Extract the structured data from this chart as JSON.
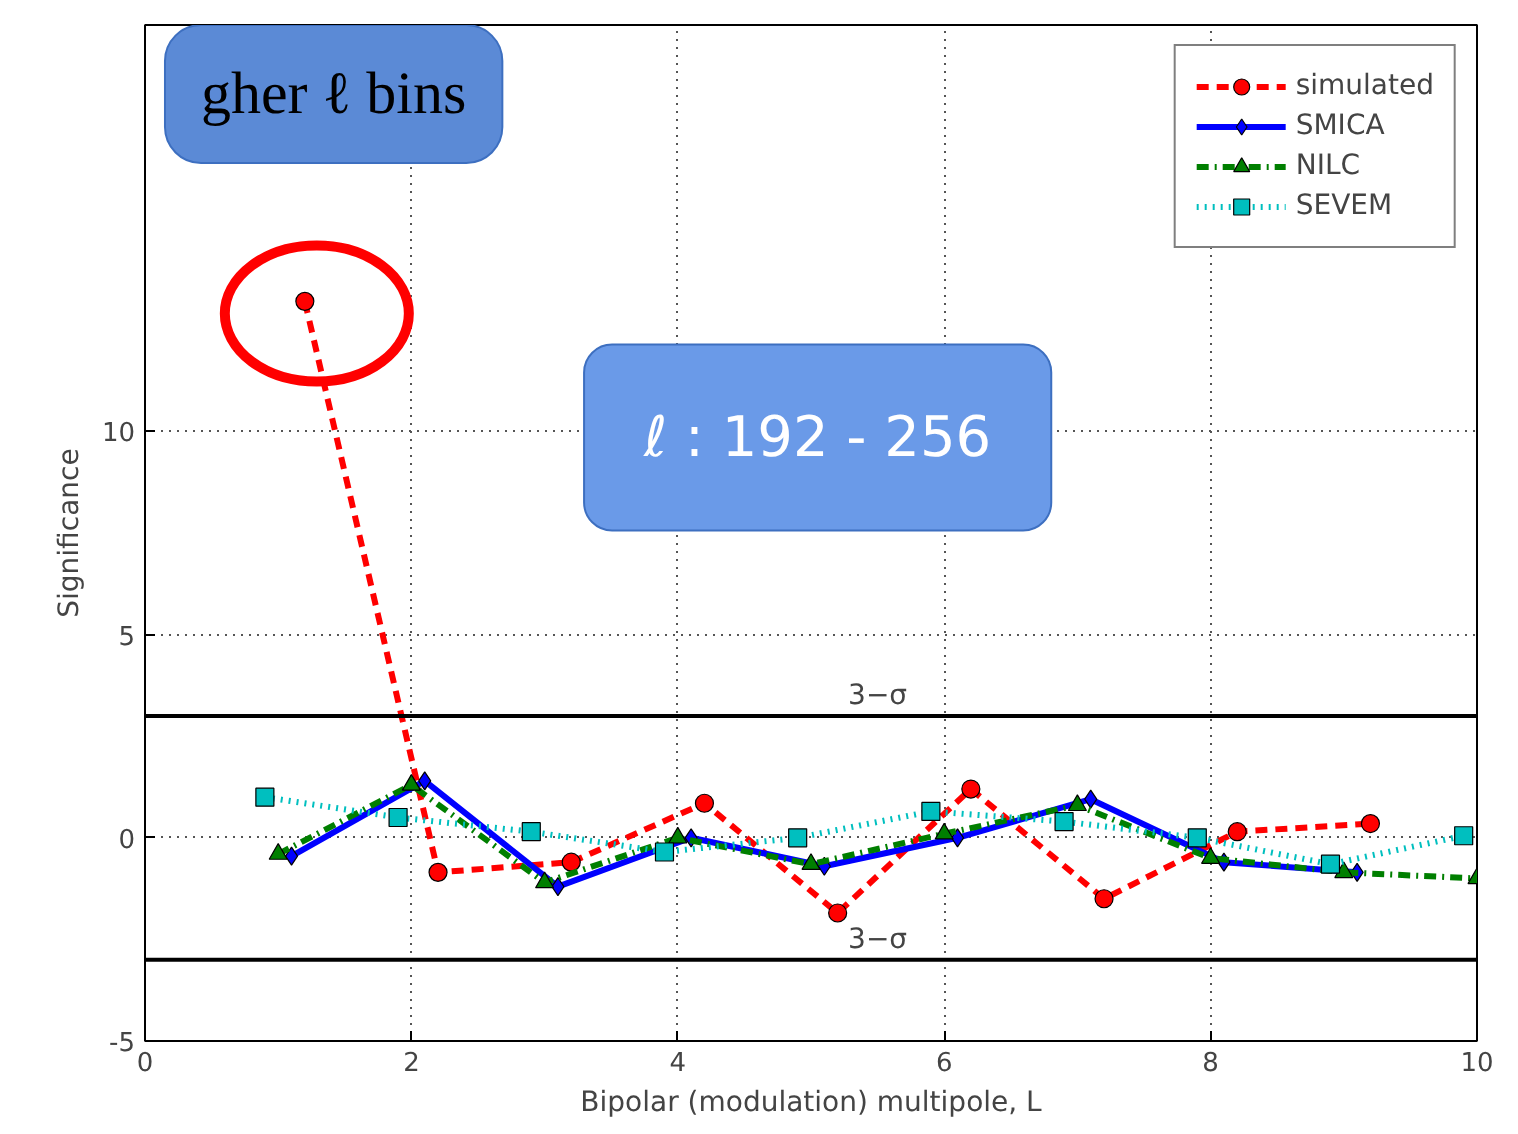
{
  "chart_data": {
    "type": "line",
    "xlabel": "Bipolar (modulation) multipole, L",
    "ylabel": "Significance",
    "xlim": [
      0,
      10
    ],
    "ylim": [
      -5,
      20
    ],
    "xticks": [
      0,
      2,
      4,
      6,
      8,
      10
    ],
    "yticks": [
      -5,
      0,
      5,
      10
    ],
    "grid": true,
    "legend": "top right",
    "series": [
      {
        "name": "simulated",
        "color": "#ff0000",
        "marker": "circle",
        "line_style": "dashed",
        "x": [
          1.2,
          2.2,
          3.2,
          4.2,
          5.2,
          6.2,
          7.2,
          8.2,
          9.2
        ],
        "values": [
          13.2,
          -0.85,
          -0.6,
          0.85,
          -1.85,
          1.2,
          -1.5,
          0.15,
          0.35
        ]
      },
      {
        "name": "SMICA",
        "color": "#0000ff",
        "marker": "diamond",
        "line_style": "solid",
        "x": [
          1.1,
          2.1,
          3.1,
          4.1,
          5.1,
          6.1,
          7.1,
          8.1,
          9.1
        ],
        "values": [
          -0.45,
          1.4,
          -1.2,
          0.0,
          -0.7,
          0.0,
          0.95,
          -0.6,
          -0.85
        ]
      },
      {
        "name": "NILC",
        "color": "#007f00",
        "marker": "triangle",
        "line_style": "dashdot",
        "x": [
          1.0,
          2.0,
          3.0,
          4.0,
          5.0,
          6.0,
          7.0,
          8.0,
          9.0,
          10.0
        ],
        "values": [
          -0.4,
          1.3,
          -1.1,
          0.0,
          -0.65,
          0.1,
          0.8,
          -0.5,
          -0.85,
          -1.0
        ]
      },
      {
        "name": "SEVEM",
        "color": "#00bfbf",
        "marker": "square",
        "line_style": "dotted",
        "x": [
          0.9,
          1.9,
          2.9,
          3.9,
          4.9,
          5.9,
          6.9,
          7.9,
          8.9,
          9.9
        ],
        "values": [
          1.0,
          0.5,
          0.15,
          -0.35,
          0.0,
          0.65,
          0.4,
          0.0,
          -0.65,
          0.05
        ]
      }
    ],
    "ref_lines": [
      {
        "axis": "y",
        "value": 3,
        "label": "3−σ",
        "color": "#000000"
      },
      {
        "axis": "y",
        "value": -3,
        "label": "3−σ",
        "color": "#000000"
      }
    ],
    "annotations": [
      "gher ℓ bins",
      "ℓ : 192 - 256"
    ]
  }
}
